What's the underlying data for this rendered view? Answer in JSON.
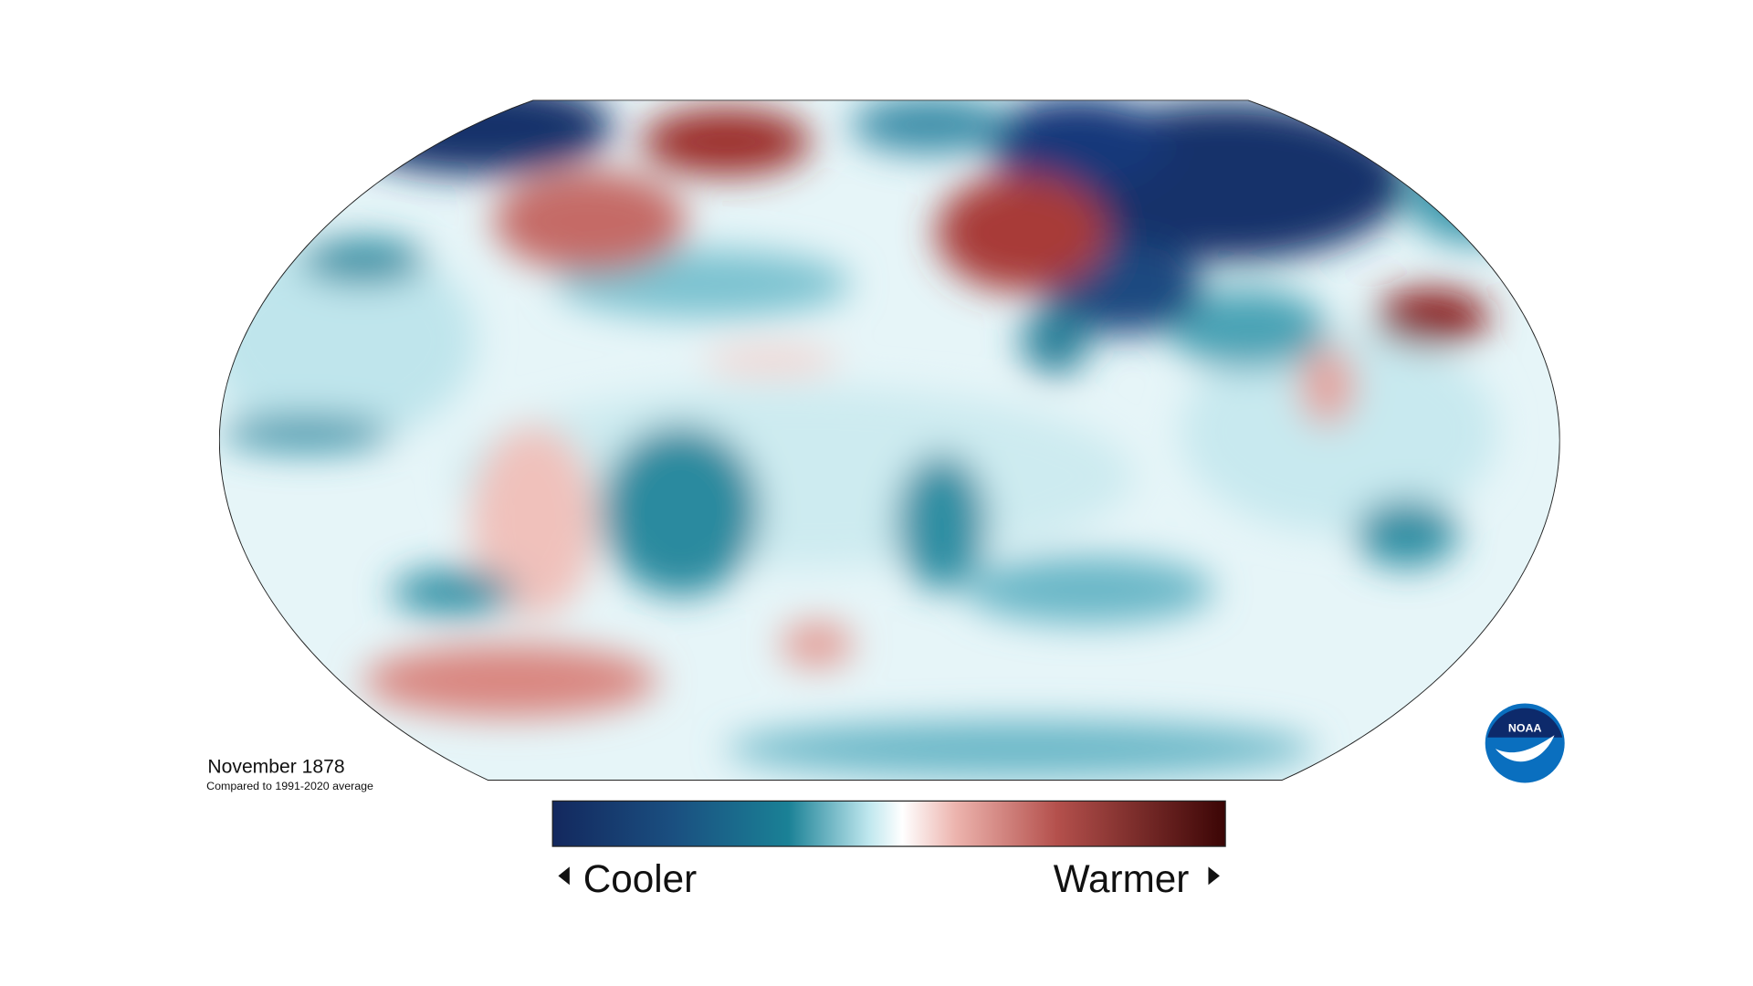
{
  "title": "November 1878",
  "subtitle": "Compared to 1991-2020 average",
  "legend": {
    "low": "Cooler",
    "high": "Warmer"
  },
  "logo": "NOAA"
}
